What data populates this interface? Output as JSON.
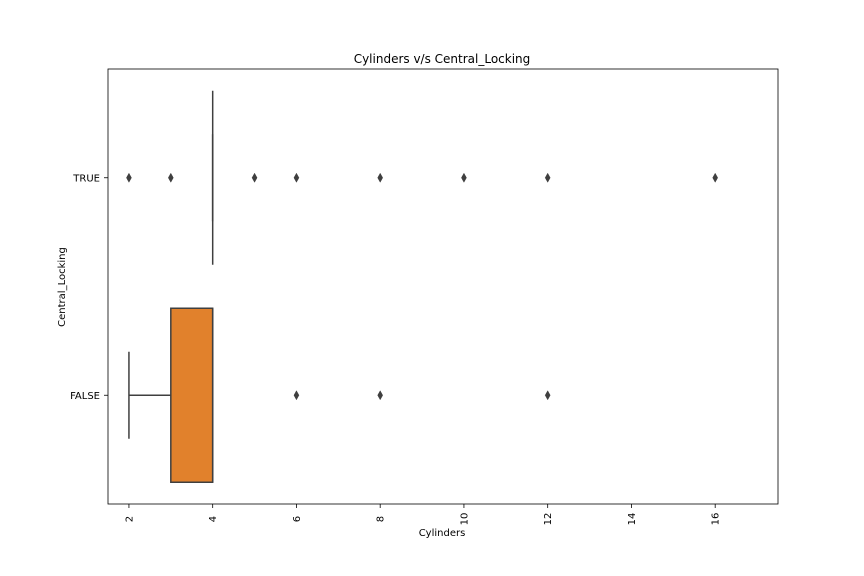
{
  "chart_data": {
    "type": "box",
    "orientation": "horizontal",
    "title": "Cylinders v/s Central_Locking",
    "xlabel": "Cylinders",
    "ylabel": "Central_Locking",
    "xlim": [
      1.5,
      17.5
    ],
    "xticks": [
      "2",
      "4",
      "6",
      "8",
      "10",
      "12",
      "14",
      "16"
    ],
    "xtick_values": [
      2,
      4,
      6,
      8,
      10,
      12,
      14,
      16
    ],
    "categories": [
      "TRUE",
      "FALSE"
    ],
    "grid": false,
    "series": [
      {
        "category": "TRUE",
        "color": "#3a75af",
        "whisker_low": 4,
        "q1": 4,
        "median": 4,
        "q3": 4,
        "whisker_high": 4,
        "outliers": [
          2,
          3,
          5,
          6,
          8,
          10,
          12,
          16
        ]
      },
      {
        "category": "FALSE",
        "color": "#e1812c",
        "whisker_low": 2,
        "q1": 3,
        "median": 4,
        "q3": 4,
        "whisker_high": 4,
        "outliers": [
          6,
          8,
          12
        ]
      }
    ]
  }
}
